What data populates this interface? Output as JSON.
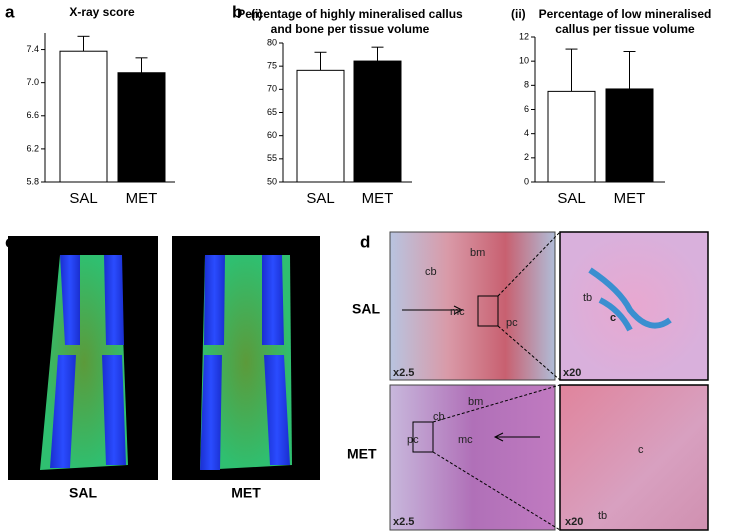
{
  "chart_data": [
    {
      "type": "bar",
      "panel": "a",
      "title": [
        "X-ray score"
      ],
      "categories": [
        "SAL",
        "MET"
      ],
      "values": [
        7.38,
        7.12
      ],
      "errors": [
        0.18,
        0.18
      ],
      "colors": [
        "#ffffff",
        "#000000"
      ],
      "ylim": [
        5.8,
        7.6
      ],
      "yticks": [
        5.8,
        6.2,
        6.6,
        {
          "value": 7.0,
          "label": "7.0"
        },
        7.4
      ]
    },
    {
      "type": "bar",
      "panel": "b",
      "subpanel": "(i)",
      "title": [
        "Percentage of highly mineralised callus",
        "and bone per tissue volume"
      ],
      "categories": [
        "SAL",
        "MET"
      ],
      "values": [
        74.1,
        76.1
      ],
      "errors": [
        3.9,
        3
      ],
      "colors": [
        "#ffffff",
        "#000000"
      ],
      "ylim": [
        50,
        80
      ],
      "yticks": [
        50,
        55,
        60,
        65,
        70,
        75,
        80
      ]
    },
    {
      "type": "bar",
      "subpanel": "(ii)",
      "title": [
        "Percentage of low mineralised",
        "callus per tissue volume"
      ],
      "categories": [
        "SAL",
        "MET"
      ],
      "values": [
        7.5,
        7.7
      ],
      "errors": [
        3.5,
        3.1
      ],
      "colors": [
        "#ffffff",
        "#000000"
      ],
      "ylim": [
        0,
        12
      ],
      "yticks": [
        0,
        2,
        4,
        6,
        8,
        10,
        12
      ]
    }
  ],
  "figure": {
    "c": {
      "label": "c",
      "images": [
        "SAL",
        "MET"
      ]
    },
    "d": {
      "label": "d",
      "rows": [
        "SAL",
        "MET"
      ],
      "sal_low": [
        "cb",
        "bm",
        "mc",
        "pc",
        "x2.5"
      ],
      "sal_high": [
        "tb",
        "c",
        "x20"
      ],
      "met_low": [
        "cb",
        "bm",
        "pc",
        "mc",
        "x2.5"
      ],
      "met_high": [
        "c",
        "tb",
        "x20"
      ]
    }
  }
}
